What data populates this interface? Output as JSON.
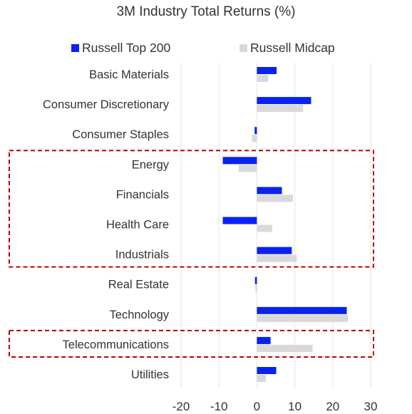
{
  "chart_data": {
    "type": "bar",
    "orientation": "horizontal",
    "title": "3M Industry Total Returns (%)",
    "xlabel": "",
    "ylabel": "",
    "xlim": [
      -20,
      30
    ],
    "x_ticks": [
      -20,
      -10,
      0,
      10,
      20,
      30
    ],
    "grid": "vertical",
    "legend_position": "top",
    "categories": [
      "Basic Materials",
      "Consumer Discretionary",
      "Consumer Staples",
      "Energy",
      "Financials",
      "Health Care",
      "Industrials",
      "Real Estate",
      "Technology",
      "Telecommunications",
      "Utilities"
    ],
    "series": [
      {
        "name": "Russell Top 200",
        "color": "#0A22F0",
        "values": [
          5.2,
          14.3,
          -0.6,
          -9.0,
          6.6,
          -9.0,
          9.2,
          -0.5,
          23.7,
          3.6,
          5.1
        ]
      },
      {
        "name": "Russell Midcap",
        "color": "#D9D9D9",
        "values": [
          3.0,
          12.2,
          -1.3,
          -4.8,
          9.5,
          4.0,
          10.5,
          -0.4,
          24.0,
          14.7,
          2.4
        ]
      }
    ],
    "highlights": [
      {
        "categories": [
          "Energy",
          "Financials",
          "Health Care",
          "Industrials"
        ],
        "color": "#C00000",
        "style": "dashed"
      },
      {
        "categories": [
          "Telecommunications"
        ],
        "color": "#C00000",
        "style": "dashed"
      }
    ]
  }
}
